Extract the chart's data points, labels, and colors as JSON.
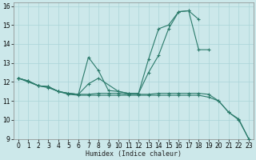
{
  "xlabel": "Humidex (Indice chaleur)",
  "xlim": [
    -0.5,
    23.5
  ],
  "ylim": [
    9,
    16.2
  ],
  "yticks": [
    9,
    10,
    11,
    12,
    13,
    14,
    15,
    16
  ],
  "xticks": [
    0,
    1,
    2,
    3,
    4,
    5,
    6,
    7,
    8,
    9,
    10,
    11,
    12,
    13,
    14,
    15,
    16,
    17,
    18,
    19,
    20,
    21,
    22,
    23
  ],
  "bg_color": "#cce8ea",
  "grid_color": "#aad4d8",
  "line_color": "#2a7a6a",
  "series": [
    {
      "x": [
        0,
        1,
        2,
        3,
        4,
        5,
        6,
        7,
        8,
        9,
        10,
        11,
        12,
        13,
        14,
        15,
        16,
        17,
        18
      ],
      "y": [
        12.2,
        12.05,
        11.8,
        11.75,
        11.5,
        11.4,
        11.35,
        13.3,
        12.6,
        11.55,
        11.5,
        11.4,
        11.4,
        13.2,
        14.8,
        15.0,
        15.7,
        15.75,
        15.3
      ]
    },
    {
      "x": [
        0,
        1,
        2,
        3,
        4,
        5,
        6,
        7,
        8,
        10,
        11,
        12,
        13,
        14,
        15,
        16,
        17,
        18,
        19
      ],
      "y": [
        12.2,
        12.05,
        11.8,
        11.75,
        11.5,
        11.4,
        11.35,
        11.9,
        12.2,
        11.5,
        11.4,
        11.4,
        12.5,
        13.4,
        14.8,
        15.7,
        15.75,
        13.7,
        13.7
      ]
    },
    {
      "x": [
        0,
        1,
        2,
        3,
        4,
        5,
        6,
        7,
        8,
        9,
        10,
        11,
        12,
        13,
        14,
        15,
        16,
        17,
        18,
        19,
        20,
        21,
        22,
        23
      ],
      "y": [
        12.2,
        12.05,
        11.8,
        11.75,
        11.5,
        11.4,
        11.35,
        11.35,
        11.4,
        11.4,
        11.4,
        11.35,
        11.35,
        11.35,
        11.4,
        11.4,
        11.4,
        11.4,
        11.4,
        11.35,
        11.0,
        10.4,
        10.05,
        9.0
      ]
    },
    {
      "x": [
        0,
        1,
        2,
        3,
        4,
        5,
        6,
        7,
        8,
        9,
        10,
        11,
        12,
        13,
        14,
        15,
        16,
        17,
        18,
        19,
        20,
        21,
        22,
        23
      ],
      "y": [
        12.2,
        12.0,
        11.8,
        11.7,
        11.5,
        11.35,
        11.3,
        11.3,
        11.3,
        11.3,
        11.3,
        11.3,
        11.3,
        11.3,
        11.3,
        11.3,
        11.3,
        11.3,
        11.3,
        11.2,
        11.0,
        10.4,
        10.0,
        9.0
      ]
    }
  ]
}
